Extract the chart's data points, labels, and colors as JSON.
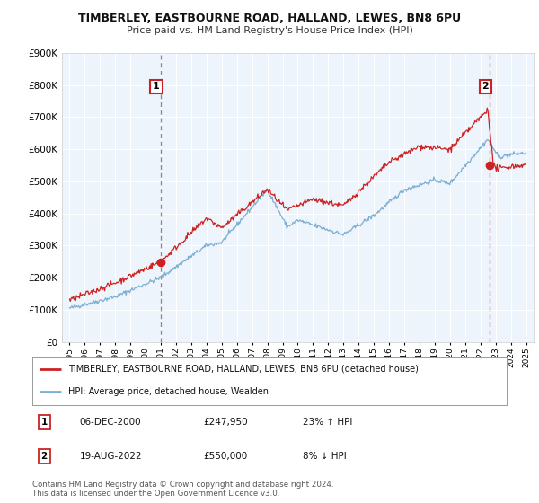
{
  "title": "TIMBERLEY, EASTBOURNE ROAD, HALLAND, LEWES, BN8 6PU",
  "subtitle": "Price paid vs. HM Land Registry's House Price Index (HPI)",
  "ylim": [
    0,
    900000
  ],
  "xlim_start": 1994.5,
  "xlim_end": 2025.5,
  "hpi_color": "#7bafd4",
  "price_color": "#cc2222",
  "vline_color": "#aaaaaa",
  "vline2_color": "#cc2222",
  "marker1_x": 2001.0,
  "marker1_y": 247950,
  "marker2_x": 2022.63,
  "marker2_y": 550000,
  "legend_label_red": "TIMBERLEY, EASTBOURNE ROAD, HALLAND, LEWES, BN8 6PU (detached house)",
  "legend_label_blue": "HPI: Average price, detached house, Wealden",
  "footer": "Contains HM Land Registry data © Crown copyright and database right 2024.\nThis data is licensed under the Open Government Licence v3.0.",
  "background_color": "#ffffff",
  "plot_bg_color": "#eef4fb",
  "grid_color": "#ffffff",
  "table_row1": [
    "1",
    "06-DEC-2000",
    "£247,950",
    "23% ↑ HPI"
  ],
  "table_row2": [
    "2",
    "19-AUG-2022",
    "£550,000",
    "8% ↓ HPI"
  ]
}
